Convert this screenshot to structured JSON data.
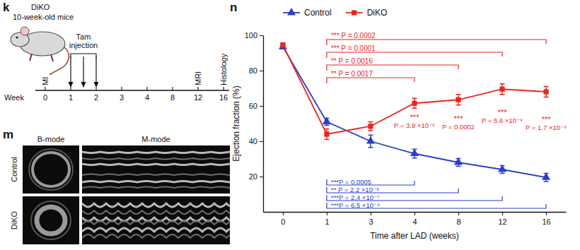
{
  "chart_data": {
    "type": "line",
    "panel_label": "n",
    "x_label": "Time after LAD (weeks)",
    "y_label": "Ejection fraction (%)",
    "categories": [
      "0",
      "1",
      "3",
      "4",
      "8",
      "12",
      "16"
    ],
    "ylim": [
      0,
      100
    ],
    "yticks": [
      20,
      40,
      60,
      80,
      100
    ],
    "legend": "top",
    "series": [
      {
        "name": "Control",
        "color": "#2b3fc6",
        "marker": "triangle",
        "values": [
          93.5,
          51,
          40,
          33,
          28,
          24,
          19.5
        ],
        "errors": [
          1.2,
          2,
          3.5,
          2.5,
          2.2,
          2.2,
          2.3
        ]
      },
      {
        "name": "DiKO",
        "color": "#e8261f",
        "marker": "square",
        "values": [
          94.5,
          44,
          48.5,
          61.5,
          63.5,
          69.5,
          68
        ],
        "errors": [
          1,
          3,
          2.5,
          2.8,
          3,
          3,
          3
        ]
      }
    ],
    "annotations": {
      "brackets": [
        {
          "series": "DiKO",
          "from": "1",
          "to": "16",
          "label": "*** P = 0.0002"
        },
        {
          "series": "DiKO",
          "from": "1",
          "to": "12",
          "label": "*** P = 0.0001"
        },
        {
          "series": "DiKO",
          "from": "1",
          "to": "8",
          "label": "** P = 0.0016"
        },
        {
          "series": "DiKO",
          "from": "1",
          "to": "4",
          "label": "** P = 0.0017"
        },
        {
          "series": "Control",
          "from": "1",
          "to": "4",
          "label": "***P = 0.0005"
        },
        {
          "series": "Control",
          "from": "1",
          "to": "8",
          "label": "** P = 2.2 ×10⁻⁵"
        },
        {
          "series": "Control",
          "from": "1",
          "to": "12",
          "label": "***P = 2.4 ×10⁻⁷"
        },
        {
          "series": "Control",
          "from": "1",
          "to": "16",
          "label": "***P = 6.5 ×10⁻⁹"
        }
      ],
      "pointwise": [
        {
          "at": "4",
          "stars": "***",
          "label": "P = 3.9 ×10⁻⁵"
        },
        {
          "at": "8",
          "stars": "***",
          "label": "P = 0.0002"
        },
        {
          "at": "12",
          "stars": "***",
          "label": "P = 5.6 ×10⁻⁹"
        },
        {
          "at": "16",
          "stars": "***",
          "label": "P = 1.7 ×10⁻⁹"
        }
      ]
    }
  },
  "schematic": {
    "label": "k",
    "title": "DiKO",
    "subtitle": "10-week-old mice",
    "axis_label": "Week",
    "weeks": [
      "0",
      "1",
      "2",
      "3",
      "4",
      "8",
      "12",
      "16"
    ],
    "injection": {
      "lines": [
        "Tam",
        "injection"
      ],
      "from": "1",
      "to": "2"
    },
    "events": [
      {
        "week": "0",
        "label": "MI"
      },
      {
        "week": "12",
        "label": "MRI"
      },
      {
        "week": "16",
        "label": "Histology"
      }
    ]
  },
  "images": {
    "label": "m",
    "columns": [
      "B-mode",
      "M-mode"
    ],
    "rows": [
      "Control",
      "DiKO"
    ]
  }
}
